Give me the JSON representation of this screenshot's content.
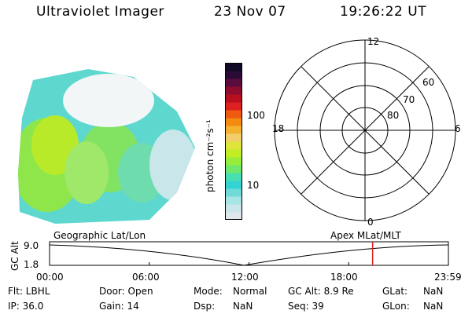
{
  "header": {
    "instrument": "Ultraviolet Imager",
    "date": "23 Nov 07",
    "time": "19:26:22 UT"
  },
  "colorbar": {
    "label": "photon cm⁻²s⁻¹",
    "ticks": [
      "100",
      "10"
    ],
    "colors": [
      "#dde7ec",
      "#c9e6ea",
      "#a5e5e3",
      "#6fdad8",
      "#34d3d3",
      "#48e0b0",
      "#6fe86d",
      "#98ec3a",
      "#c1ed24",
      "#dfe53b",
      "#f2ce6a",
      "#f4b230",
      "#f28b10",
      "#ee5a10",
      "#dd2020",
      "#b80f1e",
      "#8e0d2f",
      "#5a0c3e",
      "#2a0b36",
      "#100a24"
    ]
  },
  "polar": {
    "mlt_labels": {
      "top": "12",
      "left": "18",
      "right": "6",
      "bottom": "0"
    },
    "lat_labels": [
      "60",
      "70",
      "80"
    ]
  },
  "timeline": {
    "ylabel": "GC Alt",
    "y_ticks": [
      "9.0",
      "1.8"
    ],
    "left_title": "Geographic Lat/Lon",
    "right_title": "Apex MLat/MLT",
    "x_ticks": [
      "00:00",
      "06:00",
      "12:00",
      "18:00",
      "23:59"
    ],
    "current_hour": 19.44,
    "marker_color": "#e02020"
  },
  "info": {
    "flt": "Flt: LBHL",
    "ip": "IP: 36.0",
    "door": "Door: Open",
    "gain": "Gain: 14",
    "mode_label": "Mode:",
    "mode_value": "Normal",
    "dsp_label": "Dsp:",
    "dsp_value": "NaN",
    "gcalt": "GC Alt: 8.9 Re",
    "seq": "Seq: 39",
    "glat_label": "GLat:",
    "glat_value": "NaN",
    "glon_label": "GLon:",
    "glon_value": "NaN"
  }
}
